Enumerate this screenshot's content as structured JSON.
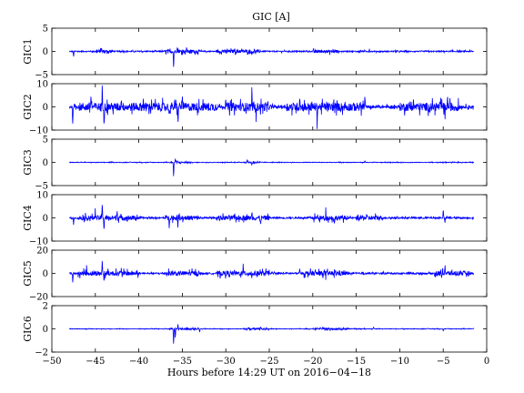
{
  "chart_data": {
    "type": "line",
    "title": "GIC [A]",
    "xlabel": "Hours before  14:29 UT on 2016−04−18",
    "xlim": [
      -50,
      0
    ],
    "xticks": [
      -50,
      -45,
      -40,
      -35,
      -30,
      -25,
      -20,
      -15,
      -10,
      -5,
      0
    ],
    "xtick_labels": [
      "−50",
      "−45",
      "−40",
      "−35",
      "−30",
      "−25",
      "−20",
      "−15",
      "−10",
      "−5",
      "0"
    ],
    "data_start_hour": -48,
    "line_color": "#0000ff",
    "grid": false,
    "panels": [
      {
        "ylabel": "GIC1",
        "ylim": [
          -5,
          5
        ],
        "yticks": [
          -5,
          0,
          5
        ],
        "ytick_labels": [
          "−5",
          "0",
          "5"
        ],
        "noise_amplitude": 0.35,
        "spikes": [
          {
            "x": -47.5,
            "y": -1.2
          },
          {
            "x": -44.3,
            "y": 0.8
          },
          {
            "x": -36.0,
            "y": -4.0
          },
          {
            "x": -35.6,
            "y": 0.9
          },
          {
            "x": -34.5,
            "y": 0.7
          },
          {
            "x": -29.0,
            "y": 0.6
          },
          {
            "x": -27.0,
            "y": -0.9
          },
          {
            "x": -18.5,
            "y": 0.6
          },
          {
            "x": -13.5,
            "y": 0.5
          }
        ],
        "active_bands": [
          [
            -45,
            -43
          ],
          [
            -37,
            -33
          ],
          [
            -31,
            -26
          ],
          [
            -20,
            -17
          ]
        ]
      },
      {
        "ylabel": "GIC2",
        "ylim": [
          -10,
          10
        ],
        "yticks": [
          -10,
          0,
          10
        ],
        "ytick_labels": [
          "−10",
          "0",
          "10"
        ],
        "noise_amplitude": 1.8,
        "spikes": [
          {
            "x": -47.6,
            "y": -8.0
          },
          {
            "x": -45.5,
            "y": 6.0
          },
          {
            "x": -44.2,
            "y": 10.0
          },
          {
            "x": -44.0,
            "y": -7.0
          },
          {
            "x": -42.0,
            "y": 5.0
          },
          {
            "x": -39.5,
            "y": 4.5
          },
          {
            "x": -36.5,
            "y": -5.0
          },
          {
            "x": -35.5,
            "y": -8.0
          },
          {
            "x": -35.0,
            "y": 6.0
          },
          {
            "x": -30.0,
            "y": 5.0
          },
          {
            "x": -27.0,
            "y": 6.0
          },
          {
            "x": -26.5,
            "y": -7.0
          },
          {
            "x": -21.5,
            "y": 5.0
          },
          {
            "x": -19.5,
            "y": -6.0
          },
          {
            "x": -14.0,
            "y": 4.0
          },
          {
            "x": -4.8,
            "y": -6.0
          },
          {
            "x": -4.5,
            "y": 4.0
          }
        ],
        "active_bands": [
          [
            -47,
            -31
          ],
          [
            -30,
            -25
          ],
          [
            -23,
            -14
          ],
          [
            -10,
            -3
          ]
        ]
      },
      {
        "ylabel": "GIC3",
        "ylim": [
          -5,
          5
        ],
        "yticks": [
          -5,
          0,
          5
        ],
        "ytick_labels": [
          "−5",
          "0",
          "5"
        ],
        "noise_amplitude": 0.18,
        "spikes": [
          {
            "x": -36.0,
            "y": -3.5
          },
          {
            "x": -35.8,
            "y": 0.9
          },
          {
            "x": -27.5,
            "y": 0.6
          },
          {
            "x": -27.0,
            "y": -0.7
          },
          {
            "x": -14.0,
            "y": 0.4
          }
        ],
        "active_bands": [
          [
            -36.5,
            -34
          ],
          [
            -28,
            -26
          ]
        ]
      },
      {
        "ylabel": "GIC4",
        "ylim": [
          -10,
          10
        ],
        "yticks": [
          -10,
          0,
          10
        ],
        "ytick_labels": [
          "−10",
          "0",
          "10"
        ],
        "noise_amplitude": 1.0,
        "spikes": [
          {
            "x": -47.5,
            "y": -3.0
          },
          {
            "x": -45.0,
            "y": 4.0
          },
          {
            "x": -44.2,
            "y": 7.5
          },
          {
            "x": -44.0,
            "y": -6.0
          },
          {
            "x": -42.5,
            "y": 3.5
          },
          {
            "x": -36.5,
            "y": -3.0
          },
          {
            "x": -35.5,
            "y": -4.0
          },
          {
            "x": -27.0,
            "y": 3.0
          },
          {
            "x": -26.0,
            "y": -3.0
          },
          {
            "x": -18.5,
            "y": 3.0
          },
          {
            "x": -17.5,
            "y": -3.0
          },
          {
            "x": -5.0,
            "y": 4.0
          },
          {
            "x": -4.8,
            "y": -2.5
          }
        ],
        "active_bands": [
          [
            -47,
            -40
          ],
          [
            -37,
            -33
          ],
          [
            -31,
            -25
          ],
          [
            -20,
            -16
          ],
          [
            -15,
            -12
          ]
        ]
      },
      {
        "ylabel": "GIC5",
        "ylim": [
          -20,
          20
        ],
        "yticks": [
          -20,
          0,
          20
        ],
        "ytick_labels": [
          "−20",
          "0",
          "20"
        ],
        "noise_amplitude": 2.0,
        "spikes": [
          {
            "x": -47.6,
            "y": -8.0
          },
          {
            "x": -46.0,
            "y": 6.0
          },
          {
            "x": -44.2,
            "y": 12.0
          },
          {
            "x": -44.0,
            "y": -8.0
          },
          {
            "x": -42.0,
            "y": 5.0
          },
          {
            "x": -35.5,
            "y": -5.0
          },
          {
            "x": -28.0,
            "y": 5.0
          },
          {
            "x": -27.0,
            "y": -4.0
          },
          {
            "x": -21.5,
            "y": 5.0
          },
          {
            "x": -18.5,
            "y": -5.0
          },
          {
            "x": -4.8,
            "y": 8.0
          },
          {
            "x": -3.0,
            "y": 4.0
          }
        ],
        "active_bands": [
          [
            -47,
            -40
          ],
          [
            -37,
            -33
          ],
          [
            -31,
            -25
          ],
          [
            -21,
            -16
          ],
          [
            -6,
            -2
          ]
        ]
      },
      {
        "ylabel": "GIC6",
        "ylim": [
          -2,
          2
        ],
        "yticks": [
          -2,
          0,
          2
        ],
        "ytick_labels": [
          "−2",
          "0",
          "2"
        ],
        "noise_amplitude": 0.07,
        "spikes": [
          {
            "x": -36.0,
            "y": -1.5
          },
          {
            "x": -35.8,
            "y": -0.9
          },
          {
            "x": -35.5,
            "y": 0.4
          },
          {
            "x": -33.0,
            "y": -0.3
          },
          {
            "x": -26.0,
            "y": 0.2
          },
          {
            "x": -18.0,
            "y": -0.2
          },
          {
            "x": -13.0,
            "y": 0.15
          },
          {
            "x": -5.0,
            "y": -0.2
          }
        ],
        "active_bands": [
          [
            -36.5,
            -33
          ],
          [
            -28,
            -25
          ],
          [
            -20,
            -16
          ]
        ]
      }
    ]
  }
}
